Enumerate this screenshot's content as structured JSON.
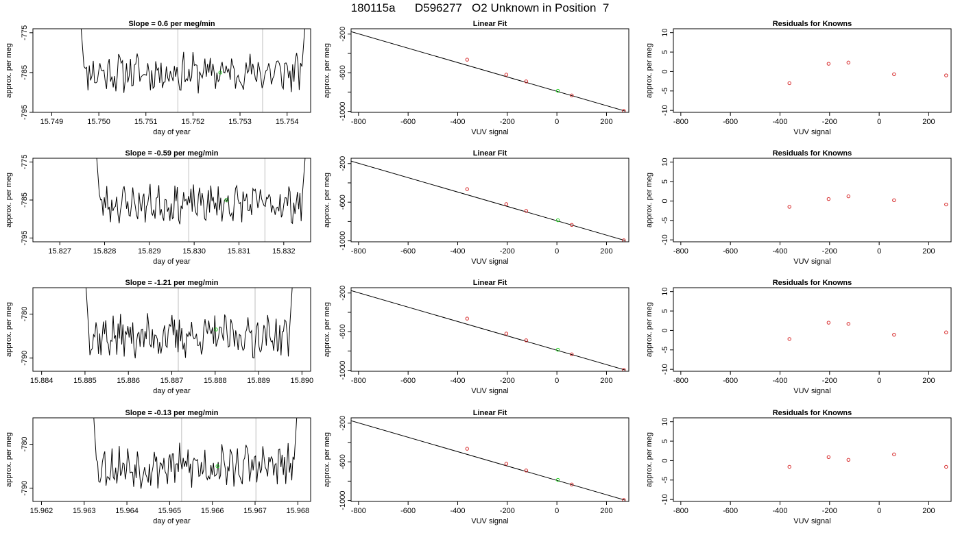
{
  "page": {
    "title": "180115a      D596277   O2 Unknown in Position  7"
  },
  "chart_data": [
    {
      "type": "line",
      "row": 0,
      "col": 0,
      "title": "Slope =  0.6  per meg/min",
      "xlabel": "day of year",
      "ylabel": "approx. per meg",
      "xlim": [
        15.7486,
        15.7545
      ],
      "ylim": [
        -795,
        -774
      ],
      "xticks": [
        "15.749",
        "15.750",
        "15.751",
        "15.752",
        "15.753",
        "15.754"
      ],
      "yticks": [
        "-775",
        "-785",
        "-795"
      ],
      "series": [
        {
          "x_start": 15.7496,
          "x_end": 15.7544,
          "center": -785,
          "seed": 11
        }
      ],
      "vlines": [
        15.75168,
        15.75348
      ],
      "green_point": {
        "x": 15.75258,
        "y": -785
      }
    },
    {
      "type": "scatter",
      "row": 0,
      "col": 1,
      "title": "Linear Fit",
      "xlabel": "VUV signal",
      "ylabel": "approx. per meg",
      "xlim": [
        -830,
        290
      ],
      "ylim": [
        -1010,
        -145
      ],
      "xticks": [
        "-800",
        "-600",
        "-400",
        "-200",
        "0",
        "200"
      ],
      "yticks": [
        "-200",
        "-600",
        "-1000"
      ],
      "fit_line": {
        "x": [
          -830,
          275
        ],
        "y": [
          -175,
          -997
        ]
      },
      "points": [
        {
          "x": -362,
          "y": -465,
          "color": "#d62728"
        },
        {
          "x": -204,
          "y": -620,
          "color": "#d62728"
        },
        {
          "x": -124,
          "y": -690,
          "color": "#d62728"
        },
        {
          "x": 4,
          "y": -787,
          "color": "#22cc22"
        },
        {
          "x": 60,
          "y": -835,
          "color": "#d62728"
        },
        {
          "x": 270,
          "y": -995,
          "color": "#d62728"
        }
      ]
    },
    {
      "type": "scatter",
      "row": 0,
      "col": 2,
      "title": "Residuals for Knowns",
      "xlabel": "VUV signal",
      "ylabel": "approx. per meg",
      "xlim": [
        -830,
        290
      ],
      "ylim": [
        -10.5,
        11
      ],
      "xticks": [
        "-800",
        "-600",
        "-400",
        "-200",
        "0",
        "200"
      ],
      "yticks": [
        "-10",
        "-5",
        "0",
        "5",
        "10"
      ],
      "points": [
        {
          "x": -362,
          "y": -3.0,
          "color": "#d62728"
        },
        {
          "x": -204,
          "y": 2.0,
          "color": "#d62728"
        },
        {
          "x": -124,
          "y": 2.3,
          "color": "#d62728"
        },
        {
          "x": 60,
          "y": -0.7,
          "color": "#d62728"
        },
        {
          "x": 270,
          "y": -1.0,
          "color": "#d62728"
        }
      ]
    },
    {
      "type": "line",
      "row": 1,
      "col": 0,
      "title": "Slope =  -0.59  per meg/min",
      "xlabel": "day of year",
      "ylabel": "approx. per meg",
      "xlim": [
        15.8264,
        15.8326
      ],
      "ylim": [
        -796,
        -774
      ],
      "xticks": [
        "15.827",
        "15.828",
        "15.829",
        "15.830",
        "15.831",
        "15.832"
      ],
      "yticks": [
        "-775",
        "-785",
        "-795"
      ],
      "series": [
        {
          "x_start": 15.8278,
          "x_end": 15.8325,
          "center": -786,
          "seed": 23
        }
      ],
      "vlines": [
        15.82988,
        15.83158
      ],
      "green_point": {
        "x": 15.83072,
        "y": -785
      }
    },
    {
      "type": "scatter",
      "row": 1,
      "col": 1,
      "title": "Linear Fit",
      "xlabel": "VUV signal",
      "ylabel": "approx. per meg",
      "xlim": [
        -830,
        290
      ],
      "ylim": [
        -1010,
        -145
      ],
      "xticks": [
        "-800",
        "-600",
        "-400",
        "-200",
        "0",
        "200"
      ],
      "yticks": [
        "-200",
        "-600",
        "-1000"
      ],
      "fit_line": {
        "x": [
          -830,
          275
        ],
        "y": [
          -175,
          -997
        ]
      },
      "points": [
        {
          "x": -362,
          "y": -465,
          "color": "#d62728"
        },
        {
          "x": -204,
          "y": -620,
          "color": "#d62728"
        },
        {
          "x": -124,
          "y": -690,
          "color": "#d62728"
        },
        {
          "x": 4,
          "y": -787,
          "color": "#22cc22"
        },
        {
          "x": 60,
          "y": -835,
          "color": "#d62728"
        },
        {
          "x": 270,
          "y": -995,
          "color": "#d62728"
        }
      ]
    },
    {
      "type": "scatter",
      "row": 1,
      "col": 2,
      "title": "Residuals for Knowns",
      "xlabel": "VUV signal",
      "ylabel": "approx. per meg",
      "xlim": [
        -830,
        290
      ],
      "ylim": [
        -10.5,
        11
      ],
      "xticks": [
        "-800",
        "-600",
        "-400",
        "-200",
        "0",
        "200"
      ],
      "yticks": [
        "-10",
        "-5",
        "0",
        "5",
        "10"
      ],
      "points": [
        {
          "x": -362,
          "y": -1.5,
          "color": "#d62728"
        },
        {
          "x": -204,
          "y": 0.5,
          "color": "#d62728"
        },
        {
          "x": -124,
          "y": 1.2,
          "color": "#d62728"
        },
        {
          "x": 60,
          "y": 0.2,
          "color": "#d62728"
        },
        {
          "x": 270,
          "y": -0.9,
          "color": "#d62728"
        }
      ]
    },
    {
      "type": "line",
      "row": 2,
      "col": 0,
      "title": "Slope =  -1.21  per meg/min",
      "xlabel": "day of year",
      "ylabel": "approx. per meg",
      "xlim": [
        15.8838,
        15.8902
      ],
      "ylim": [
        -793,
        -774
      ],
      "xticks": [
        "15.884",
        "15.885",
        "15.886",
        "15.887",
        "15.888",
        "15.889",
        "15.890"
      ],
      "yticks": [
        "-780",
        "-790"
      ],
      "series": [
        {
          "x_start": 15.885,
          "x_end": 15.8898,
          "center": -785,
          "seed": 37
        }
      ],
      "vlines": [
        15.88715,
        15.88892
      ],
      "green_point": {
        "x": 15.88802,
        "y": -783.5
      }
    },
    {
      "type": "scatter",
      "row": 2,
      "col": 1,
      "title": "Linear Fit",
      "xlabel": "VUV signal",
      "ylabel": "approx. per meg",
      "xlim": [
        -830,
        290
      ],
      "ylim": [
        -1010,
        -145
      ],
      "xticks": [
        "-800",
        "-600",
        "-400",
        "-200",
        "0",
        "200"
      ],
      "yticks": [
        "-200",
        "-600",
        "-1000"
      ],
      "fit_line": {
        "x": [
          -830,
          275
        ],
        "y": [
          -175,
          -997
        ]
      },
      "points": [
        {
          "x": -362,
          "y": -465,
          "color": "#d62728"
        },
        {
          "x": -204,
          "y": -620,
          "color": "#d62728"
        },
        {
          "x": -124,
          "y": -690,
          "color": "#d62728"
        },
        {
          "x": 4,
          "y": -787,
          "color": "#22cc22"
        },
        {
          "x": 60,
          "y": -835,
          "color": "#d62728"
        },
        {
          "x": 270,
          "y": -995,
          "color": "#d62728"
        }
      ]
    },
    {
      "type": "scatter",
      "row": 2,
      "col": 2,
      "title": "Residuals for Knowns",
      "xlabel": "VUV signal",
      "ylabel": "approx. per meg",
      "xlim": [
        -830,
        290
      ],
      "ylim": [
        -10.5,
        11
      ],
      "xticks": [
        "-800",
        "-600",
        "-400",
        "-200",
        "0",
        "200"
      ],
      "yticks": [
        "-10",
        "-5",
        "0",
        "5",
        "10"
      ],
      "points": [
        {
          "x": -362,
          "y": -2.2,
          "color": "#d62728"
        },
        {
          "x": -204,
          "y": 2.0,
          "color": "#d62728"
        },
        {
          "x": -124,
          "y": 1.7,
          "color": "#d62728"
        },
        {
          "x": 60,
          "y": -1.1,
          "color": "#d62728"
        },
        {
          "x": 270,
          "y": -0.5,
          "color": "#d62728"
        }
      ]
    },
    {
      "type": "line",
      "row": 3,
      "col": 0,
      "title": "Slope =  -0.13  per meg/min",
      "xlabel": "day of year",
      "ylabel": "approx. per meg",
      "xlim": [
        15.9618,
        15.9683
      ],
      "ylim": [
        -793,
        -774
      ],
      "xticks": [
        "15.962",
        "15.963",
        "15.964",
        "15.965",
        "15.966",
        "15.967",
        "15.968"
      ],
      "yticks": [
        "-780",
        "-790"
      ],
      "series": [
        {
          "x_start": 15.9632,
          "x_end": 15.968,
          "center": -785,
          "seed": 53
        }
      ],
      "vlines": [
        15.96528,
        15.96702
      ],
      "green_point": {
        "x": 15.96612,
        "y": -785
      }
    },
    {
      "type": "scatter",
      "row": 3,
      "col": 1,
      "title": "Linear Fit",
      "xlabel": "VUV signal",
      "ylabel": "approx. per meg",
      "xlim": [
        -830,
        290
      ],
      "ylim": [
        -1010,
        -145
      ],
      "xticks": [
        "-800",
        "-600",
        "-400",
        "-200",
        "0",
        "200"
      ],
      "yticks": [
        "-200",
        "-600",
        "-1000"
      ],
      "fit_line": {
        "x": [
          -830,
          275
        ],
        "y": [
          -175,
          -997
        ]
      },
      "points": [
        {
          "x": -362,
          "y": -465,
          "color": "#d62728"
        },
        {
          "x": -204,
          "y": -620,
          "color": "#d62728"
        },
        {
          "x": -124,
          "y": -690,
          "color": "#d62728"
        },
        {
          "x": 4,
          "y": -787,
          "color": "#22cc22"
        },
        {
          "x": 60,
          "y": -835,
          "color": "#d62728"
        },
        {
          "x": 270,
          "y": -995,
          "color": "#d62728"
        }
      ]
    },
    {
      "type": "scatter",
      "row": 3,
      "col": 2,
      "title": "Residuals for Knowns",
      "xlabel": "VUV signal",
      "ylabel": "approx. per meg",
      "xlim": [
        -830,
        290
      ],
      "ylim": [
        -10.5,
        11
      ],
      "xticks": [
        "-800",
        "-600",
        "-400",
        "-200",
        "0",
        "200"
      ],
      "yticks": [
        "-10",
        "-5",
        "0",
        "5",
        "10"
      ],
      "points": [
        {
          "x": -362,
          "y": -1.6,
          "color": "#d62728"
        },
        {
          "x": -204,
          "y": 0.9,
          "color": "#d62728"
        },
        {
          "x": -124,
          "y": 0.2,
          "color": "#d62728"
        },
        {
          "x": 60,
          "y": 1.6,
          "color": "#d62728"
        },
        {
          "x": 270,
          "y": -1.6,
          "color": "#d62728"
        }
      ]
    }
  ]
}
